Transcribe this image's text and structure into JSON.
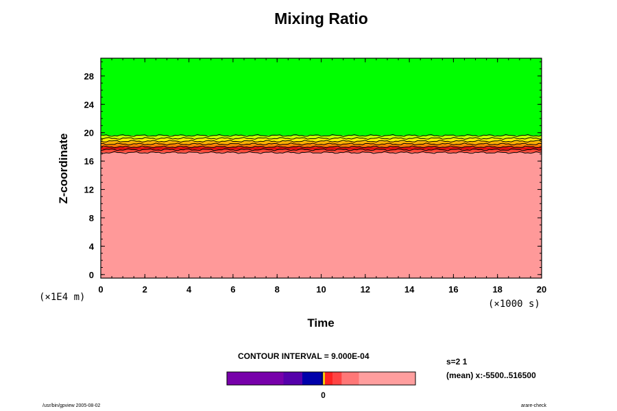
{
  "chart_data": {
    "type": "heatmap",
    "title": "Mixing Ratio",
    "xlabel": "Time",
    "ylabel": "Z-coordinate",
    "x_unit_note": "(×1000 s)",
    "y_unit_note": "(×1E4 m)",
    "xlim": [
      0,
      20
    ],
    "ylim": [
      -0.5,
      30.5
    ],
    "x_ticks": [
      0,
      2,
      4,
      6,
      8,
      10,
      12,
      14,
      16,
      18,
      20
    ],
    "y_ticks": [
      0,
      4,
      8,
      12,
      16,
      20,
      24,
      28
    ],
    "bands": [
      {
        "z_from": -0.5,
        "z_to": 17.2,
        "color": "#ff9999"
      },
      {
        "z_from": 17.2,
        "z_to": 17.6,
        "color": "#ff4a3a"
      },
      {
        "z_from": 17.6,
        "z_to": 18.0,
        "color": "#dd1111"
      },
      {
        "z_from": 18.0,
        "z_to": 18.4,
        "color": "#ff7a00"
      },
      {
        "z_from": 18.4,
        "z_to": 18.8,
        "color": "#ffb000"
      },
      {
        "z_from": 18.8,
        "z_to": 19.2,
        "color": "#ffee00"
      },
      {
        "z_from": 19.2,
        "z_to": 19.6,
        "color": "#ccff00"
      },
      {
        "z_from": 19.6,
        "z_to": 30.5,
        "color": "#00ff00"
      }
    ],
    "contour_levels_z": [
      17.2,
      17.6,
      18.0,
      18.4,
      18.8,
      19.2,
      19.6
    ],
    "contour_interval": "CONTOUR INTERVAL = 9.000E-04",
    "colorbar": {
      "segments": [
        {
          "w": 0.3,
          "color": "#7700aa"
        },
        {
          "w": 0.1,
          "color": "#5500aa"
        },
        {
          "w": 0.1,
          "color": "#0000aa"
        },
        {
          "w": 0.01,
          "color": "#000066"
        },
        {
          "w": 0.01,
          "color": "#ffcc00"
        },
        {
          "w": 0.04,
          "color": "#ff2222"
        },
        {
          "w": 0.05,
          "color": "#ff4444"
        },
        {
          "w": 0.09,
          "color": "#ff7777"
        },
        {
          "w": 0.3,
          "color": "#ff9e9e"
        }
      ],
      "zero_label": "0",
      "zero_position": 0.5
    }
  },
  "info": {
    "slice": "s=2 1",
    "mean": "(mean) x:-5500..516500",
    "footer_left": "/usr/bin/gpview 2005-08-02",
    "footer_right": "arare-check"
  }
}
